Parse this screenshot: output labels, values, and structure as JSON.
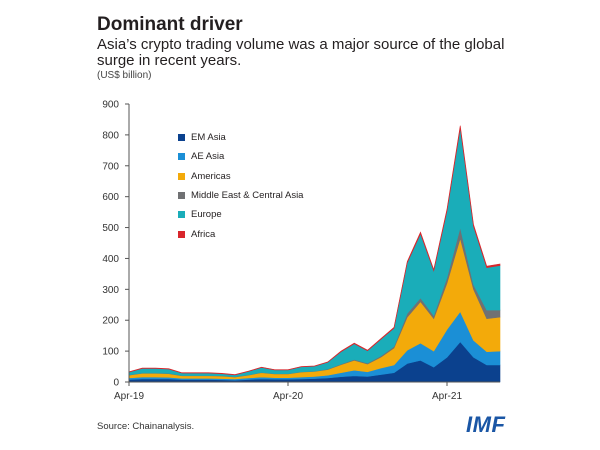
{
  "title": "Dominant driver",
  "subtitle": "Asia’s crypto trading volume was a major source of the global surge in recent years.",
  "unit": "(US$ billion)",
  "source": "Source: Chainanalysis.",
  "logo": "IMF",
  "chart_data": {
    "type": "area",
    "stacked": true,
    "title": "Dominant driver",
    "ylabel": "(US$ billion)",
    "ylim": [
      0,
      900
    ],
    "yticks": [
      "0",
      "100",
      "200",
      "300",
      "400",
      "500",
      "600",
      "700",
      "800",
      "900"
    ],
    "xtick_labels": [
      "Apr-19",
      "Apr-20",
      "Apr-21"
    ],
    "grid": false,
    "legend_position": "top-left",
    "x": [
      "Apr-19",
      "May-19",
      "Jun-19",
      "Jul-19",
      "Aug-19",
      "Sep-19",
      "Oct-19",
      "Nov-19",
      "Dec-19",
      "Jan-20",
      "Feb-20",
      "Mar-20",
      "Apr-20",
      "May-20",
      "Jun-20",
      "Jul-20",
      "Aug-20",
      "Sep-20",
      "Oct-20",
      "Nov-20",
      "Dec-20",
      "Jan-21",
      "Feb-21",
      "Mar-21",
      "Apr-21",
      "May-21",
      "Jun-21",
      "Jul-21",
      "Aug-21"
    ],
    "series": [
      {
        "name": "EM Asia",
        "color": "#0b418e",
        "values": [
          8,
          10,
          10,
          10,
          8,
          8,
          8,
          7,
          6,
          8,
          10,
          9,
          9,
          10,
          11,
          13,
          17,
          20,
          18,
          24,
          30,
          60,
          70,
          48,
          80,
          130,
          80,
          55,
          55
        ]
      },
      {
        "name": "AE Asia",
        "color": "#1b8fd6",
        "values": [
          5,
          6,
          6,
          5,
          4,
          4,
          4,
          4,
          4,
          5,
          6,
          5,
          5,
          6,
          7,
          9,
          13,
          18,
          15,
          21,
          25,
          43,
          56,
          52,
          90,
          98,
          55,
          43,
          45
        ]
      },
      {
        "name": "Americas",
        "color": "#f3aa0a",
        "values": [
          9,
          12,
          12,
          12,
          8,
          8,
          8,
          8,
          6,
          9,
          14,
          12,
          12,
          16,
          16,
          18,
          26,
          32,
          25,
          35,
          55,
          107,
          134,
          105,
          150,
          237,
          165,
          107,
          110
        ]
      },
      {
        "name": "Middle East & Central Asia",
        "color": "#707173",
        "values": [
          1,
          1,
          1,
          1,
          1,
          1,
          1,
          1,
          1,
          1,
          1,
          1,
          1,
          1,
          1,
          2,
          2,
          3,
          3,
          4,
          5,
          12,
          12,
          10,
          18,
          35,
          15,
          28,
          23
        ]
      },
      {
        "name": "Europe",
        "color": "#1aadb9",
        "values": [
          9,
          15,
          15,
          14,
          8,
          8,
          8,
          7,
          6,
          11,
          16,
          12,
          12,
          16,
          16,
          22,
          40,
          51,
          40,
          54,
          59,
          164,
          208,
          145,
          216,
          322,
          189,
          137,
          144
        ]
      },
      {
        "name": "Africa",
        "color": "#d8262c",
        "values": [
          1,
          1,
          1,
          1,
          1,
          1,
          1,
          1,
          1,
          1,
          1,
          1,
          1,
          1,
          1,
          1,
          2,
          2,
          2,
          2,
          3,
          4,
          5,
          4,
          6,
          8,
          6,
          5,
          5
        ]
      }
    ]
  }
}
